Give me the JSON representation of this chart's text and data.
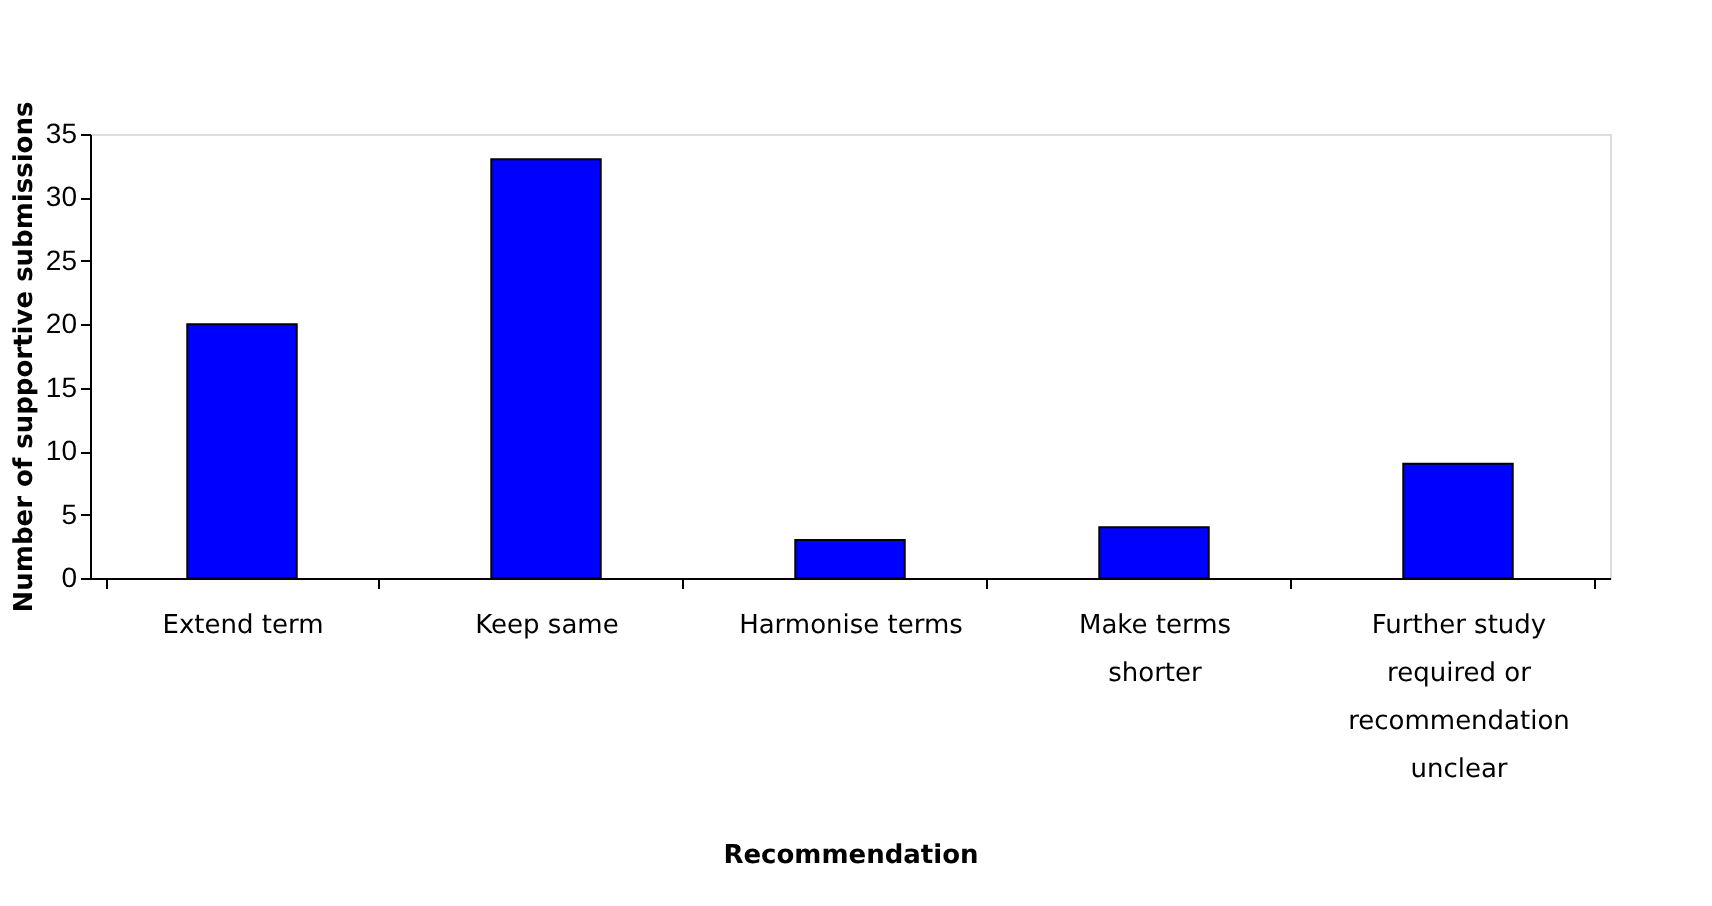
{
  "chart_data": {
    "type": "bar",
    "xlabel": "Recommendation",
    "ylabel": "Number of supportive submissions",
    "categories": [
      "Extend term",
      "Keep same",
      "Harmonise terms",
      "Make terms shorter",
      "Further study required or recommendation unclear"
    ],
    "values": [
      20,
      33,
      3,
      4,
      9
    ],
    "color": "#0000ff",
    "ylim": [
      0,
      35
    ],
    "yticks": [
      0,
      5,
      10,
      15,
      20,
      25,
      30,
      35
    ],
    "grid": false
  }
}
